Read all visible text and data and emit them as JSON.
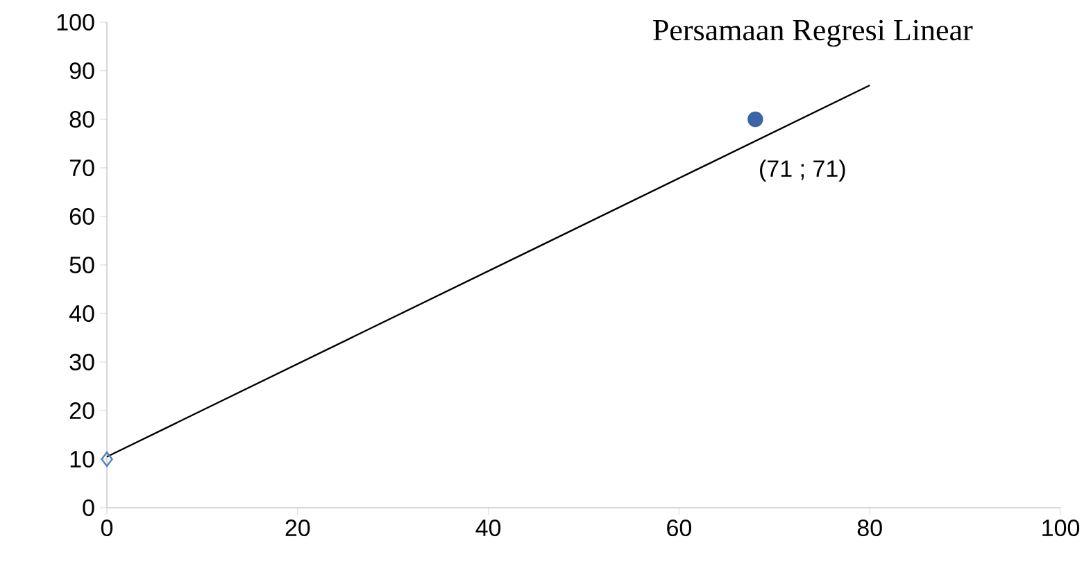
{
  "chart_data": {
    "type": "scatter",
    "title": "Persamaan Regresi Linear",
    "xlim": [
      0,
      100
    ],
    "ylim": [
      0,
      100
    ],
    "xticks": [
      0,
      20,
      40,
      60,
      80,
      100
    ],
    "yticks": [
      0,
      10,
      20,
      30,
      40,
      50,
      60,
      70,
      80,
      90,
      100
    ],
    "grid": false,
    "series": [
      {
        "type": "line",
        "color": "#000000",
        "x": [
          0,
          80
        ],
        "values": [
          10.5,
          87
        ],
        "marker": "none",
        "line_style": "solid"
      },
      {
        "color": "#4f81bd",
        "x": [
          0
        ],
        "values": [
          10
        ],
        "marker": "diamond"
      },
      {
        "color": "#3a65a8",
        "x": [
          68
        ],
        "values": [
          80
        ],
        "marker": "circle"
      }
    ],
    "annotations": [
      {
        "text": "(71 ; 71)",
        "x": 68,
        "y": 80
      }
    ]
  }
}
